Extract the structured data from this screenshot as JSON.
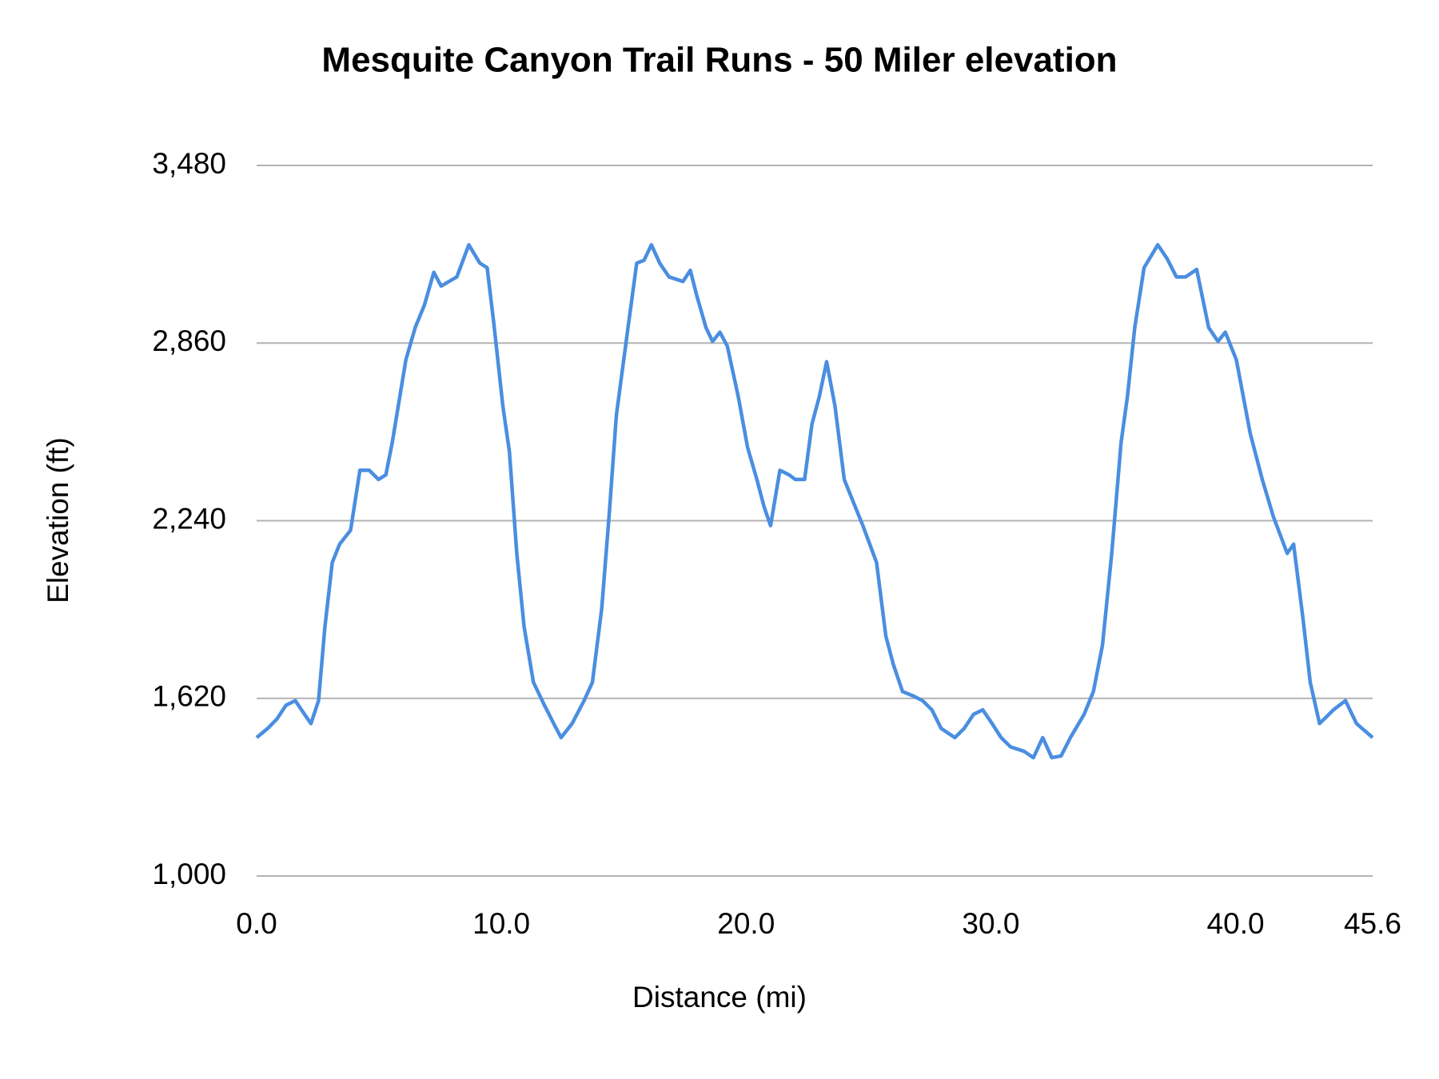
{
  "chart_data": {
    "type": "line",
    "title": "Mesquite Canyon Trail Runs - 50 Miler elevation",
    "x_label": "Distance (mi)",
    "y_label": "Elevation (ft)",
    "xlim": [
      0,
      45.6
    ],
    "xticks": [
      {
        "value": 0,
        "label": "0.0"
      },
      {
        "value": 10,
        "label": "10.0"
      },
      {
        "value": 20,
        "label": "20.0"
      },
      {
        "value": 30,
        "label": "30.0"
      },
      {
        "value": 40,
        "label": "40.0"
      },
      45.6
    ],
    "ylim": [
      1000,
      3480
    ],
    "yticks": [
      {
        "value": 1000,
        "label": "1,000"
      },
      {
        "value": 1620,
        "label": "1,620"
      },
      {
        "value": 2240,
        "label": "2,240"
      },
      {
        "value": 2860,
        "label": "2,860"
      },
      {
        "value": 3480,
        "label": "3,480"
      }
    ],
    "grid": true,
    "x": [
      0,
      0.45,
      0.83,
      1.2,
      1.58,
      1.96,
      2.22,
      2.53,
      2.79,
      3.09,
      3.39,
      3.84,
      4.22,
      4.6,
      4.98,
      5.28,
      5.54,
      6.1,
      6.48,
      6.86,
      7.24,
      7.54,
      8.18,
      8.67,
      9.12,
      9.42,
      9.69,
      10.06,
      10.33,
      10.63,
      10.93,
      11.31,
      11.76,
      12.14,
      12.44,
      12.89,
      13.38,
      13.72,
      14.1,
      14.4,
      14.7,
      15.15,
      15.53,
      15.83,
      16.13,
      16.47,
      16.85,
      17.42,
      17.72,
      17.98,
      18.36,
      18.63,
      18.93,
      19.23,
      19.68,
      20.06,
      20.44,
      20.74,
      21.0,
      21.38,
      21.76,
      22.01,
      22.39,
      22.69,
      22.99,
      23.29,
      23.63,
      24.01,
      24.39,
      24.77,
      25.33,
      25.71,
      26.01,
      26.39,
      26.84,
      27.21,
      27.59,
      27.97,
      28.53,
      28.91,
      29.29,
      29.67,
      30.05,
      30.42,
      30.8,
      31.36,
      31.74,
      32.12,
      32.49,
      32.87,
      33.25,
      33.81,
      34.19,
      34.56,
      34.94,
      35.32,
      35.58,
      35.88,
      36.26,
      36.82,
      37.2,
      37.58,
      37.96,
      38.41,
      38.9,
      39.28,
      39.58,
      40.03,
      40.6,
      41.09,
      41.54,
      42.11,
      42.37,
      42.75,
      43.05,
      43.43,
      44.0,
      44.49,
      44.94,
      45.6
    ],
    "series": [
      {
        "name": "Elevation",
        "color": "#4a8ee0",
        "values": [
          1483,
          1515,
          1548,
          1596,
          1612,
          1564,
          1532,
          1612,
          1869,
          2094,
          2158,
          2207,
          2416,
          2416,
          2384,
          2400,
          2512,
          2802,
          2914,
          2994,
          3107,
          3059,
          3091,
          3203,
          3139,
          3123,
          2930,
          2641,
          2480,
          2126,
          1869,
          1676,
          1596,
          1532,
          1483,
          1532,
          1612,
          1676,
          1933,
          2255,
          2609,
          2898,
          3139,
          3149,
          3203,
          3139,
          3091,
          3075,
          3114,
          3027,
          2914,
          2866,
          2898,
          2850,
          2673,
          2496,
          2384,
          2287,
          2223,
          2416,
          2400,
          2384,
          2384,
          2577,
          2673,
          2795,
          2641,
          2384,
          2303,
          2223,
          2094,
          1837,
          1740,
          1644,
          1628,
          1612,
          1580,
          1515,
          1483,
          1515,
          1564,
          1580,
          1532,
          1483,
          1451,
          1435,
          1413,
          1483,
          1413,
          1419,
          1483,
          1564,
          1644,
          1805,
          2126,
          2512,
          2673,
          2914,
          3123,
          3203,
          3155,
          3091,
          3091,
          3117,
          2914,
          2866,
          2898,
          2802,
          2544,
          2384,
          2255,
          2126,
          2158,
          1901,
          1676,
          1532,
          1580,
          1612,
          1532,
          1483
        ]
      }
    ]
  }
}
